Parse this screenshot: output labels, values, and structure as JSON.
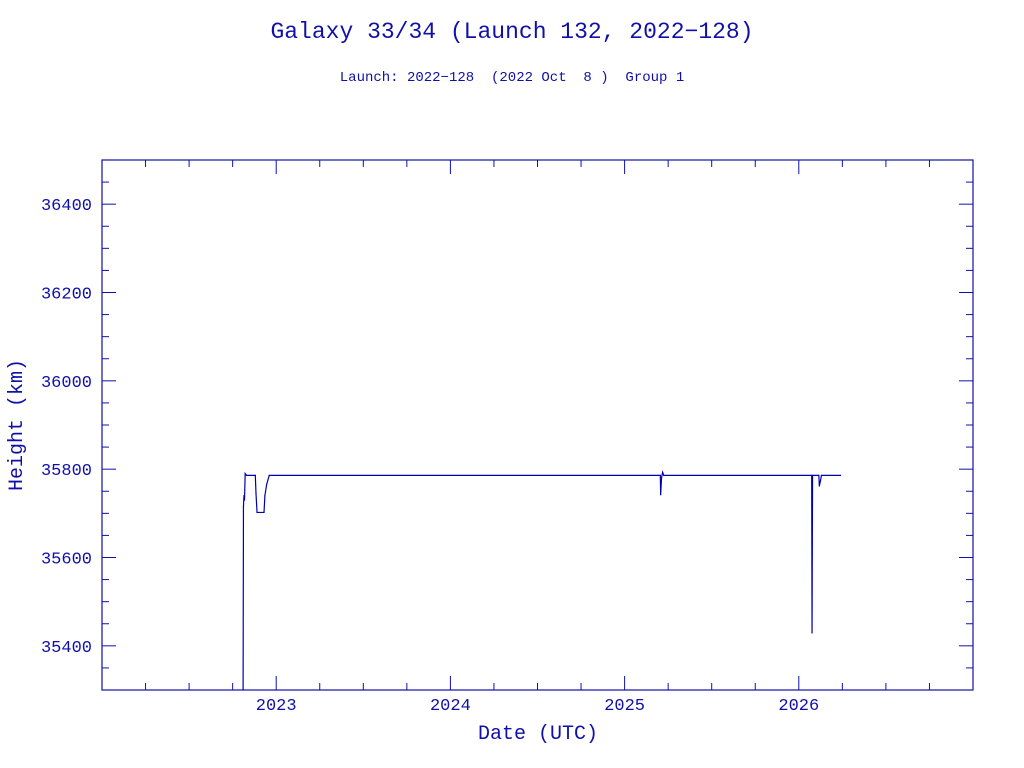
{
  "chart_data": {
    "type": "line",
    "title": "Galaxy 33/34 (Launch 132, 2022−128)",
    "subtitle": "Launch: 2022−128  (2022 Oct  8 )  Group 1",
    "xlabel": "Date (UTC)",
    "ylabel": "Height (km)",
    "xlim": [
      2022.0,
      2027.0
    ],
    "ylim": [
      35300,
      36500
    ],
    "x_ticks": [
      2023,
      2024,
      2025,
      2026
    ],
    "x_tick_labels": [
      "2023",
      "2024",
      "2025",
      "2026"
    ],
    "x_minor_step": 0.25,
    "y_ticks": [
      35400,
      35600,
      35800,
      36000,
      36200,
      36400
    ],
    "y_tick_labels": [
      "35400",
      "35600",
      "35800",
      "36000",
      "36200",
      "36400"
    ],
    "y_minor_step": 50,
    "grid": false,
    "colors": {
      "axes": "#1010a8",
      "line": "#0000b0"
    },
    "series": [
      {
        "x": [
          2022.81,
          2022.812,
          2022.815,
          2022.818,
          2022.822,
          2022.83,
          2022.88,
          2022.884,
          2022.89,
          2022.93,
          2022.935,
          2022.945,
          2022.96,
          2025.205,
          2025.207,
          2025.212,
          2025.218,
          2025.225,
          2026.074,
          2026.076,
          2026.079,
          2026.115,
          2026.118,
          2026.125,
          2026.13,
          2026.24
        ],
        "y": [
          35000,
          35715,
          35740,
          35730,
          35790,
          35786,
          35786,
          35745,
          35702,
          35702,
          35740,
          35765,
          35786,
          35786,
          35742,
          35780,
          35793,
          35786,
          35786,
          35429,
          35786,
          35786,
          35762,
          35775,
          35786,
          35786
        ]
      }
    ]
  }
}
